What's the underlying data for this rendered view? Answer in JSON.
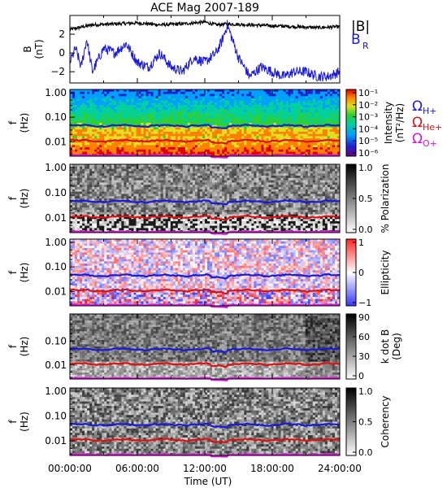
{
  "chart_data": {
    "title": "ACE Mag 2007-189",
    "xlabel": "Time (UT)",
    "x_ticks": [
      "00:00:00",
      "06:00:00",
      "12:00:00",
      "18:00:00",
      "24:00:00"
    ],
    "x_range_hours": [
      0,
      24
    ],
    "panels": [
      {
        "type": "line",
        "ylabel": "B",
        "yunit": "(nT)",
        "yticks": [
          "2",
          "0",
          "−2"
        ],
        "ylim": [
          -3.2,
          4.0
        ],
        "legend": [
          {
            "label": "|B|",
            "color": "#000000"
          },
          {
            "label": "B",
            "sub": "R",
            "color": "#1a1adc"
          }
        ],
        "series": [
          {
            "name": "|B|",
            "color": "#000000",
            "x": [
              0,
              2,
              4,
              6,
              8,
              10,
              12,
              13,
              14,
              16,
              18,
              20,
              22,
              24
            ],
            "y": [
              2.5,
              3.0,
              3.1,
              3.2,
              3.0,
              3.1,
              3.3,
              3.0,
              3.1,
              3.0,
              2.9,
              2.8,
              2.7,
              2.8
            ]
          },
          {
            "name": "BR",
            "color": "#1a1adc",
            "x": [
              0,
              0.5,
              1,
              1.5,
              2,
              3,
              4,
              5,
              6,
              7,
              8,
              9,
              10,
              11,
              12,
              13,
              13.5,
              14,
              15,
              16,
              17,
              18,
              19,
              20,
              21,
              22,
              23,
              24
            ],
            "y": [
              -1.0,
              0.5,
              -1.5,
              1.5,
              -2.0,
              0.5,
              0.0,
              1.0,
              -1.0,
              -1.5,
              0.0,
              -1.5,
              -2.0,
              -0.5,
              -1.0,
              0.0,
              1.2,
              3.0,
              -0.5,
              -2.5,
              -1.5,
              -2.0,
              -2.5,
              -2.0,
              -2.0,
              -2.5,
              -2.5,
              -2.0
            ]
          }
        ]
      },
      {
        "type": "heatmap",
        "ylabel": "f",
        "yunit": "(Hz)",
        "yticks": [
          "1.00",
          "0.10",
          "0.01"
        ],
        "colorbar_title": "Intensity",
        "colorbar_unit": "(nT²/Hz)",
        "colorbar_ticks": [
          "10⁻¹",
          "10⁻²",
          "10⁻³",
          "10⁻⁴",
          "10⁻⁵",
          "10⁻⁶"
        ],
        "legend": [
          {
            "label": "Ω",
            "sub": "H+",
            "color": "#1a1adc"
          },
          {
            "label": "Ω",
            "sub": "He+",
            "color": "#e01010"
          },
          {
            "label": "Ω",
            "sub": "O+",
            "color": "#e010e0"
          }
        ]
      },
      {
        "type": "heatmap",
        "ylabel": "f",
        "yunit": "(Hz)",
        "yticks": [
          "1.00",
          "0.10",
          "0.01"
        ],
        "colorbar_title": "% Polarization",
        "colorbar_ticks": [
          "1.0",
          "0.5",
          "0.0"
        ]
      },
      {
        "type": "heatmap",
        "ylabel": "f",
        "yunit": "(Hz)",
        "yticks": [
          "1.00",
          "0.10",
          "0.01"
        ],
        "colorbar_title": "Ellipticity",
        "colorbar_ticks": [
          "1",
          "0",
          "−1"
        ]
      },
      {
        "type": "heatmap",
        "ylabel": "f",
        "yunit": "(Hz)",
        "yticks": [
          "0.10",
          "0.01"
        ],
        "colorbar_title": "k dot B",
        "colorbar_unit": "(Deg)",
        "colorbar_ticks": [
          "90",
          "60",
          "30",
          "0"
        ]
      },
      {
        "type": "heatmap",
        "ylabel": "f",
        "yunit": "(Hz)",
        "yticks": [
          "1.00",
          "0.10",
          "0.01"
        ],
        "colorbar_title": "Coherency",
        "colorbar_ticks": [
          "1.0",
          "0.5",
          "0.0"
        ]
      }
    ],
    "gyrofrequency_lines": [
      {
        "name": "ΩH+",
        "color": "#1a1adc",
        "f_hz": 0.045
      },
      {
        "name": "ΩHe+",
        "color": "#e01010",
        "f_hz": 0.011
      },
      {
        "name": "ΩO+",
        "color": "#e010e0",
        "f_hz": 0.0028
      }
    ]
  }
}
